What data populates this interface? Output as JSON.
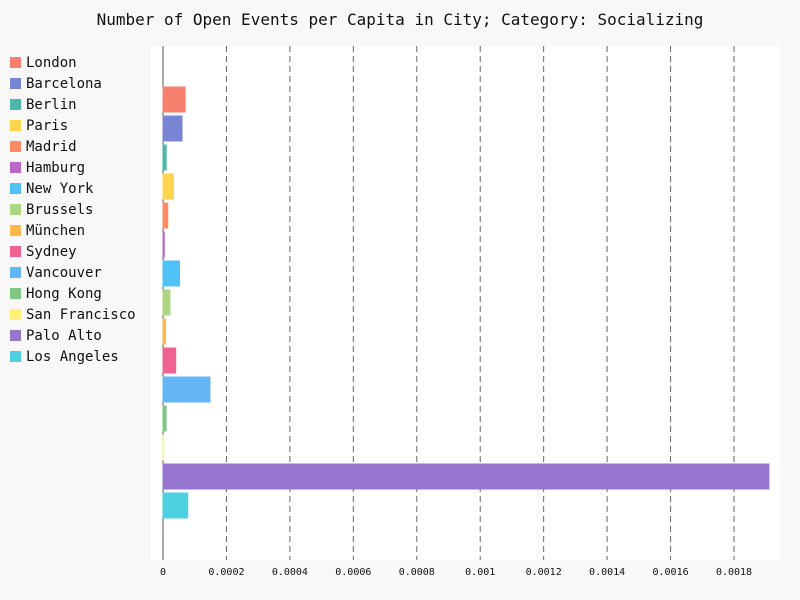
{
  "chart_data": {
    "type": "bar",
    "orientation": "horizontal",
    "title": "Number of Open Events per Capita in City; Category: Socializing",
    "xlabel": "",
    "ylabel": "",
    "xlim": [
      0,
      0.00195
    ],
    "x_ticks": [
      "0",
      "0.0002",
      "0.0004",
      "0.0006",
      "0.0008",
      "0.001",
      "0.0012",
      "0.0014",
      "0.0016",
      "0.0018"
    ],
    "x_tick_values": [
      0,
      0.0002,
      0.0004,
      0.0006,
      0.0008,
      0.001,
      0.0012,
      0.0014,
      0.0016,
      0.0018
    ],
    "grid": "vertical dashed",
    "legend_position": "left",
    "series": [
      {
        "name": "London",
        "value": 7e-05,
        "color": "#F7806F"
      },
      {
        "name": "Barcelona",
        "value": 6e-05,
        "color": "#7884D4"
      },
      {
        "name": "Berlin",
        "value": 1e-05,
        "color": "#4DB6AC"
      },
      {
        "name": "Paris",
        "value": 3.3e-05,
        "color": "#FFD54F"
      },
      {
        "name": "Madrid",
        "value": 1.5e-05,
        "color": "#FF8A65"
      },
      {
        "name": "Hamburg",
        "value": 4e-06,
        "color": "#BA68C8"
      },
      {
        "name": "New York",
        "value": 5.2e-05,
        "color": "#4FC3F7"
      },
      {
        "name": "Brussels",
        "value": 2.2e-05,
        "color": "#AED581"
      },
      {
        "name": "München",
        "value": 8e-06,
        "color": "#FFB74D"
      },
      {
        "name": "Sydney",
        "value": 4e-05,
        "color": "#F06292"
      },
      {
        "name": "Vancouver",
        "value": 0.000148,
        "color": "#64B5F6"
      },
      {
        "name": "Hong Kong",
        "value": 1e-05,
        "color": "#81C784"
      },
      {
        "name": "San Francisco",
        "value": 5e-07,
        "color": "#FFF176"
      },
      {
        "name": "Palo Alto",
        "value": 0.00191,
        "color": "#9575CD"
      },
      {
        "name": "Los Angeles",
        "value": 7.8e-05,
        "color": "#4DD0E1"
      }
    ]
  }
}
